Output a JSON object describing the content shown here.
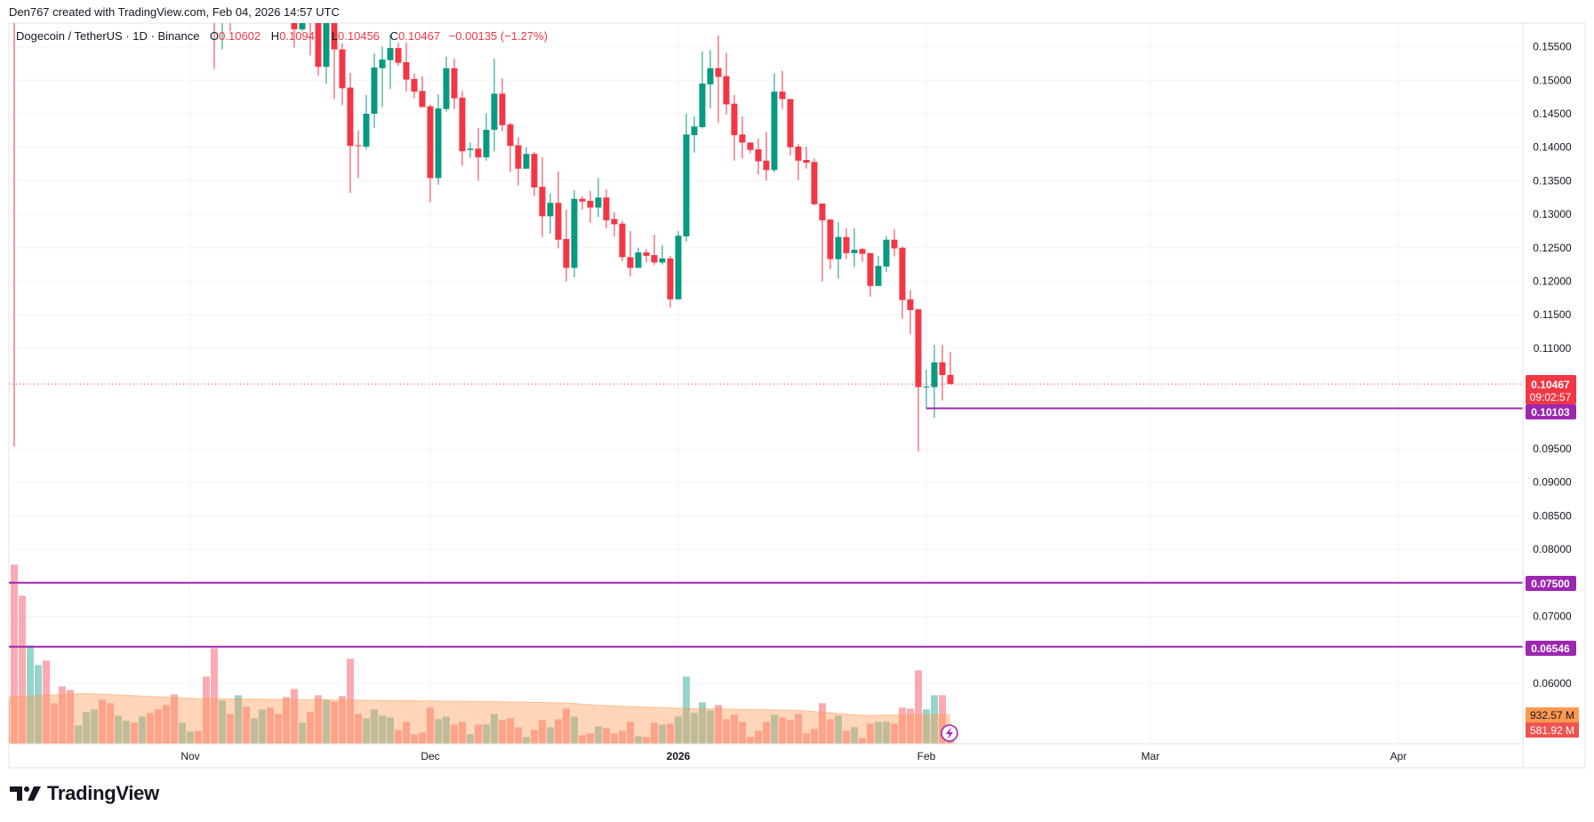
{
  "attribution": "Den767 created with TradingView.com, Feb 04, 2026 14:57 UTC",
  "legend": {
    "symbol": "Dogecoin / TetherUS · 1D · Binance",
    "o_label": "O",
    "o": "0.10602",
    "h_label": "H",
    "h": "0.10947",
    "l_label": "L",
    "l": "0.10456",
    "c_label": "C",
    "c": "0.10467",
    "change": "−0.00135 (−1.27%)"
  },
  "price_tags": {
    "last": "0.10467",
    "countdown": "09:02:57",
    "support_1": "0.10103",
    "support_2": "0.07500",
    "support_3": "0.06546"
  },
  "volume_tags": {
    "ma": "932.57 M",
    "volume": "581.92 M"
  },
  "logo": "TradingView",
  "colors": {
    "up": "#089981",
    "down": "#F23645",
    "drawing": "#9C27B0",
    "volume_ma": "#FF9850",
    "grid": "#F0F3FA",
    "frame": "#E0E3EB"
  },
  "chart_data": {
    "type": "candlestick",
    "title": "Dogecoin / TetherUS · 1D · Binance",
    "ylim": [
      0.0525,
      0.1585
    ],
    "price_ticks": [
      "0.15500",
      "0.15000",
      "0.14500",
      "0.14000",
      "0.13500",
      "0.13000",
      "0.12500",
      "0.12000",
      "0.11500",
      "0.11000",
      "0.09500",
      "0.09000",
      "0.08500",
      "0.08000",
      "0.07000",
      "0.06000"
    ],
    "time_ticks": [
      {
        "label": "Nov",
        "date": "2025-11-01"
      },
      {
        "label": "Dec",
        "date": "2025-12-01"
      },
      {
        "label": "2026",
        "date": "2026-01-01"
      },
      {
        "label": "Feb",
        "date": "2026-02-01"
      },
      {
        "label": "Mar",
        "date": "2026-03-01"
      },
      {
        "label": "Apr",
        "date": "2026-04-01"
      }
    ],
    "horizontal_lines": [
      {
        "price": 0.10103,
        "from": "2026-02-01"
      },
      {
        "price": 0.075,
        "from": null
      },
      {
        "price": 0.06546,
        "from": null
      }
    ],
    "last_price": 0.10467,
    "candles_columns": [
      "date",
      "open",
      "high",
      "low",
      "close"
    ],
    "candles": [
      [
        "2025-10-10",
        0.253,
        0.255,
        0.0953,
        0.19
      ],
      [
        "2025-11-04",
        0.172,
        0.176,
        0.1517,
        0.162
      ],
      [
        "2025-11-05",
        0.16,
        0.168,
        0.1546,
        0.166
      ],
      [
        "2025-11-06",
        0.166,
        0.17,
        0.1573,
        0.162
      ],
      [
        "2025-11-14",
        0.165,
        0.172,
        0.1549,
        0.1576
      ],
      [
        "2025-11-15",
        0.1576,
        0.166,
        0.1573,
        0.163
      ],
      [
        "2025-11-16",
        0.163,
        0.166,
        0.1537,
        0.161
      ],
      [
        "2025-11-17",
        0.161,
        0.163,
        0.1507,
        0.152
      ],
      [
        "2025-11-18",
        0.152,
        0.1625,
        0.1495,
        0.16
      ],
      [
        "2025-11-19",
        0.16,
        0.161,
        0.1472,
        0.1546
      ],
      [
        "2025-11-20",
        0.1546,
        0.1555,
        0.1463,
        0.1488
      ],
      [
        "2025-11-21",
        0.1489,
        0.1511,
        0.1332,
        0.1402
      ],
      [
        "2025-11-22",
        0.1403,
        0.1425,
        0.1354,
        0.1402
      ],
      [
        "2025-11-23",
        0.1401,
        0.1478,
        0.1397,
        0.145
      ],
      [
        "2025-11-24",
        0.145,
        0.154,
        0.1429,
        0.1519
      ],
      [
        "2025-11-25",
        0.1518,
        0.155,
        0.146,
        0.1531
      ],
      [
        "2025-11-26",
        0.153,
        0.1568,
        0.1487,
        0.1548
      ],
      [
        "2025-11-27",
        0.1548,
        0.1556,
        0.1522,
        0.1526
      ],
      [
        "2025-11-28",
        0.1527,
        0.1556,
        0.1483,
        0.1501
      ],
      [
        "2025-11-29",
        0.1502,
        0.151,
        0.1473,
        0.1483
      ],
      [
        "2025-11-30",
        0.1484,
        0.1506,
        0.146,
        0.146
      ],
      [
        "2025-12-01",
        0.1461,
        0.1464,
        0.1318,
        0.1354
      ],
      [
        "2025-12-02",
        0.1354,
        0.1479,
        0.1344,
        0.1458
      ],
      [
        "2025-12-03",
        0.1457,
        0.1535,
        0.1453,
        0.1518
      ],
      [
        "2025-12-04",
        0.1518,
        0.1532,
        0.1457,
        0.1473
      ],
      [
        "2025-12-05",
        0.1474,
        0.1484,
        0.1372,
        0.1394
      ],
      [
        "2025-12-06",
        0.1396,
        0.1407,
        0.1384,
        0.1398
      ],
      [
        "2025-12-07",
        0.1398,
        0.1429,
        0.135,
        0.1385
      ],
      [
        "2025-12-08",
        0.1385,
        0.1451,
        0.138,
        0.1426
      ],
      [
        "2025-12-09",
        0.1426,
        0.1532,
        0.1394,
        0.148
      ],
      [
        "2025-12-10",
        0.148,
        0.1503,
        0.1424,
        0.1433
      ],
      [
        "2025-12-11",
        0.1434,
        0.1437,
        0.1363,
        0.1402
      ],
      [
        "2025-12-12",
        0.1403,
        0.1415,
        0.1343,
        0.1368
      ],
      [
        "2025-12-13",
        0.1368,
        0.14,
        0.1368,
        0.139
      ],
      [
        "2025-12-14",
        0.139,
        0.1393,
        0.1327,
        0.134
      ],
      [
        "2025-12-15",
        0.1341,
        0.1385,
        0.1266,
        0.1297
      ],
      [
        "2025-12-16",
        0.1297,
        0.1331,
        0.1271,
        0.1317
      ],
      [
        "2025-12-17",
        0.1317,
        0.1364,
        0.1249,
        0.1262
      ],
      [
        "2025-12-18",
        0.1263,
        0.1307,
        0.12,
        0.122
      ],
      [
        "2025-12-19",
        0.122,
        0.1336,
        0.1206,
        0.1323
      ],
      [
        "2025-12-20",
        0.1323,
        0.1327,
        0.1307,
        0.1319
      ],
      [
        "2025-12-21",
        0.132,
        0.1335,
        0.1287,
        0.131
      ],
      [
        "2025-12-22",
        0.131,
        0.1354,
        0.1296,
        0.1325
      ],
      [
        "2025-12-23",
        0.1325,
        0.1337,
        0.1279,
        0.1291
      ],
      [
        "2025-12-24",
        0.1293,
        0.1303,
        0.1266,
        0.1285
      ],
      [
        "2025-12-25",
        0.1286,
        0.129,
        0.123,
        0.1236
      ],
      [
        "2025-12-26",
        0.1236,
        0.1275,
        0.1207,
        0.122
      ],
      [
        "2025-12-27",
        0.122,
        0.125,
        0.122,
        0.1243
      ],
      [
        "2025-12-28",
        0.1243,
        0.1248,
        0.1228,
        0.1238
      ],
      [
        "2025-12-29",
        0.1239,
        0.127,
        0.1224,
        0.1228
      ],
      [
        "2025-12-30",
        0.1228,
        0.1254,
        0.1225,
        0.1234
      ],
      [
        "2025-12-31",
        0.1234,
        0.1238,
        0.1161,
        0.1173
      ],
      [
        "2026-01-01",
        0.1173,
        0.1275,
        0.1173,
        0.1268
      ],
      [
        "2026-01-02",
        0.1267,
        0.145,
        0.1259,
        0.1419
      ],
      [
        "2026-01-03",
        0.1418,
        0.1446,
        0.1392,
        0.1431
      ],
      [
        "2026-01-04",
        0.143,
        0.1543,
        0.1428,
        0.1495
      ],
      [
        "2026-01-05",
        0.1494,
        0.1545,
        0.1458,
        0.1518
      ],
      [
        "2026-01-06",
        0.1518,
        0.1567,
        0.1436,
        0.1505
      ],
      [
        "2026-01-07",
        0.1506,
        0.1541,
        0.1449,
        0.1464
      ],
      [
        "2026-01-08",
        0.1465,
        0.1478,
        0.138,
        0.1418
      ],
      [
        "2026-01-09",
        0.1419,
        0.1446,
        0.1383,
        0.1407
      ],
      [
        "2026-01-10",
        0.1407,
        0.1407,
        0.1391,
        0.1396
      ],
      [
        "2026-01-11",
        0.1397,
        0.1413,
        0.1359,
        0.1379
      ],
      [
        "2026-01-12",
        0.138,
        0.1423,
        0.135,
        0.1366
      ],
      [
        "2026-01-13",
        0.1366,
        0.151,
        0.1363,
        0.1483
      ],
      [
        "2026-01-14",
        0.1483,
        0.1514,
        0.1457,
        0.1472
      ],
      [
        "2026-01-15",
        0.1472,
        0.1472,
        0.1388,
        0.14
      ],
      [
        "2026-01-16",
        0.1401,
        0.1405,
        0.1351,
        0.138
      ],
      [
        "2026-01-17",
        0.1381,
        0.1401,
        0.1368,
        0.1377
      ],
      [
        "2026-01-18",
        0.1378,
        0.1383,
        0.1313,
        0.1315
      ],
      [
        "2026-01-19",
        0.1316,
        0.1316,
        0.12,
        0.1291
      ],
      [
        "2026-01-20",
        0.1292,
        0.1293,
        0.1218,
        0.1233
      ],
      [
        "2026-01-21",
        0.1233,
        0.1288,
        0.1204,
        0.1266
      ],
      [
        "2026-01-22",
        0.1266,
        0.1279,
        0.1233,
        0.1242
      ],
      [
        "2026-01-23",
        0.1242,
        0.1279,
        0.1221,
        0.1247
      ],
      [
        "2026-01-24",
        0.1248,
        0.125,
        0.1229,
        0.1241
      ],
      [
        "2026-01-25",
        0.1242,
        0.1243,
        0.1177,
        0.1193
      ],
      [
        "2026-01-26",
        0.1193,
        0.1238,
        0.1193,
        0.1223
      ],
      [
        "2026-01-27",
        0.1222,
        0.1267,
        0.1214,
        0.1262
      ],
      [
        "2026-01-28",
        0.1262,
        0.1278,
        0.1237,
        0.1249
      ],
      [
        "2026-01-29",
        0.125,
        0.1252,
        0.1144,
        0.1172
      ],
      [
        "2026-01-30",
        0.1173,
        0.1187,
        0.1121,
        0.1157
      ],
      [
        "2026-01-31",
        0.1158,
        0.1159,
        0.0946,
        0.1042
      ],
      [
        "2026-02-01",
        0.1042,
        0.1068,
        0.101,
        0.1043
      ],
      [
        "2026-02-02",
        0.1042,
        0.1105,
        0.0996,
        0.1079
      ],
      [
        "2026-02-03",
        0.1079,
        0.1105,
        0.1022,
        0.106
      ],
      [
        "2026-02-04",
        0.10602,
        0.10947,
        0.10456,
        0.10467
      ]
    ],
    "volume": {
      "unit": "M",
      "start": "2025-10-09",
      "directions": "rrrggrrrrgggrrggrgrrrrggrrrgrgrggrrrrgrrgrrrrggggrrrrrggrrgrggrrrgrrgrrgrrgrrrrgrrgrgggggrrrrrrrgrrrrrrrgrgrrggrrrrggrr",
      "values": [
        1359,
        5748,
        4750,
        3154,
        2527,
        2670,
        1302,
        1843,
        1729,
        589,
        1017,
        1102,
        1416,
        1302,
        903,
        732,
        675,
        874,
        988,
        1102,
        1245,
        1587,
        675,
        390,
        418,
        2157,
        3069,
        1387,
        960,
        1558,
        1188,
        817,
        1102,
        1159,
        960,
        1501,
        1758,
        675,
        1017,
        1558,
        1416,
        1359,
        1530,
        2727,
        960,
        817,
        1102,
        903,
        846,
        447,
        703,
        304,
        361,
        1159,
        789,
        874,
        618,
        703,
        304,
        618,
        618,
        960,
        760,
        817,
        532,
        219,
        447,
        760,
        532,
        789,
        1131,
        874,
        276,
        333,
        561,
        504,
        333,
        418,
        703,
        247,
        219,
        675,
        618,
        646,
        874,
        2157,
        988,
        1330,
        1074,
        1245,
        789,
        931,
        703,
        219,
        418,
        703,
        931,
        846,
        760,
        960,
        333,
        475,
        1302,
        789,
        903,
        418,
        532,
        190,
        646,
        703,
        703,
        646,
        1159,
        1131,
        2356,
        1102,
        1558,
        1558,
        581.92
      ],
      "ma": [
        [
          "2025-10-09",
          1500
        ],
        [
          "2025-10-19",
          1615
        ],
        [
          "2025-11-02",
          1450
        ],
        [
          "2025-12-07",
          1360
        ],
        [
          "2025-12-18",
          1311
        ],
        [
          "2025-12-22",
          1235
        ],
        [
          "2026-01-01",
          1140
        ],
        [
          "2026-01-16",
          1074
        ],
        [
          "2026-01-19",
          1017
        ],
        [
          "2026-01-24",
          912
        ],
        [
          "2026-02-04",
          932.57
        ]
      ]
    }
  }
}
